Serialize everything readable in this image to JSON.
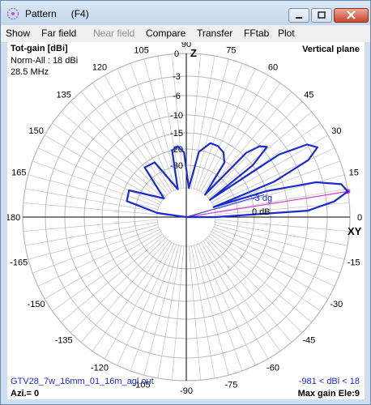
{
  "window": {
    "title": "Pattern",
    "title_key": "(F4)"
  },
  "menu": [
    {
      "label": "Show",
      "enabled": true
    },
    {
      "label": "Far field",
      "enabled": true
    },
    {
      "label": "Near field",
      "enabled": false
    },
    {
      "label": "Compare",
      "enabled": true
    },
    {
      "label": "Transfer",
      "enabled": true
    },
    {
      "label": "FFtab",
      "enabled": true
    },
    {
      "label": "Plot",
      "enabled": true
    }
  ],
  "plot": {
    "quantity": "Tot-gain [dBi]",
    "norm": "Norm-All : 18 dBi",
    "frequency": "28.5 MHz",
    "plane": "Vertical plane",
    "axis_top": "Z",
    "axis_right": "XY",
    "file": "GTV28_7w_16mm_01_16m_agl.out",
    "range_info": "-981 < dBi < 18",
    "azimuth": "Azi.= 0",
    "max_gain": "Max gain Ele:9",
    "marker_3db": "-3 dg",
    "marker_0db": "0 dB"
  },
  "chart_data": {
    "type": "polar",
    "angle_labels": [
      "0",
      "15",
      "30",
      "45",
      "60",
      "75",
      "90",
      "105",
      "120",
      "135",
      "150",
      "165",
      "180",
      "-165",
      "-150",
      "-135",
      "-120",
      "-105",
      "-90",
      "-75",
      "-60",
      "-45",
      "-30",
      "-15"
    ],
    "radial_labels": [
      "0",
      "-3",
      "-6",
      "-10",
      "-15",
      "-20",
      "-30"
    ],
    "series": [
      {
        "color": "#1a2bd0",
        "points": [
          {
            "angle": 0,
            "db": -30
          },
          {
            "angle": 3,
            "db": -6
          },
          {
            "angle": 6,
            "db": -2
          },
          {
            "angle": 9,
            "db": 0
          },
          {
            "angle": 12,
            "db": -0.7
          },
          {
            "angle": 15,
            "db": -4
          },
          {
            "angle": 18,
            "db": -15
          },
          {
            "angle": 20,
            "db": -30
          },
          {
            "angle": 22,
            "db": -12
          },
          {
            "angle": 25,
            "db": -4
          },
          {
            "angle": 28,
            "db": -2
          },
          {
            "angle": 31,
            "db": -3
          },
          {
            "angle": 34,
            "db": -8
          },
          {
            "angle": 36,
            "db": -30
          },
          {
            "angle": 38,
            "db": -15
          },
          {
            "angle": 41,
            "db": -9
          },
          {
            "angle": 44,
            "db": -10
          },
          {
            "angle": 47,
            "db": -14
          },
          {
            "angle": 50,
            "db": -30
          },
          {
            "angle": 55,
            "db": -21
          },
          {
            "angle": 60,
            "db": -18
          },
          {
            "angle": 66,
            "db": -17
          },
          {
            "angle": 72,
            "db": -17
          },
          {
            "angle": 79,
            "db": -21
          },
          {
            "angle": 85,
            "db": -30
          },
          {
            "angle": 92,
            "db": -22
          },
          {
            "angle": 97,
            "db": -19
          },
          {
            "angle": 102,
            "db": -20
          },
          {
            "angle": 107,
            "db": -30
          },
          {
            "angle": 120,
            "db": -23
          },
          {
            "angle": 130,
            "db": -22
          },
          {
            "angle": 140,
            "db": -30
          },
          {
            "angle": 155,
            "db": -23
          },
          {
            "angle": 165,
            "db": -24
          },
          {
            "angle": 172,
            "db": -30
          }
        ]
      }
    ],
    "max_gain_line": {
      "angle": 9,
      "db": 0,
      "color": "#d13ad1"
    }
  }
}
